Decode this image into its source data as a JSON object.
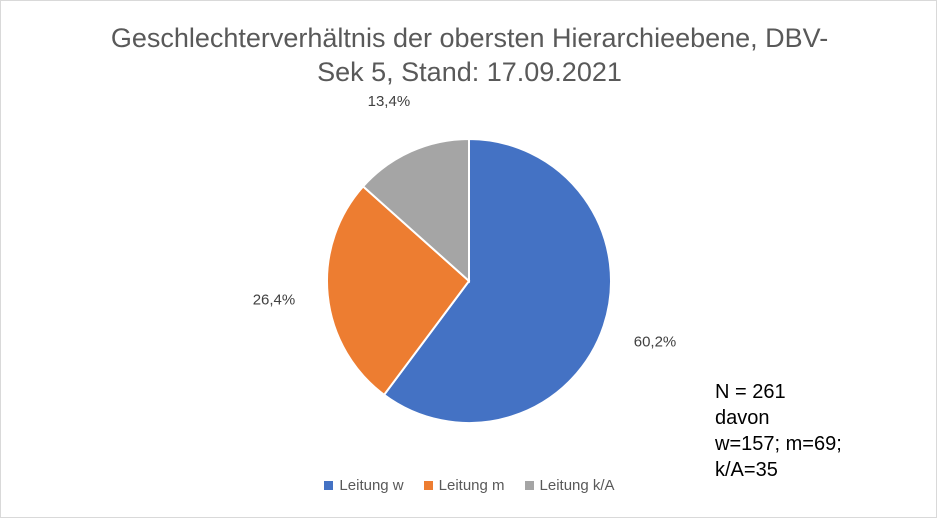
{
  "chart_data": {
    "type": "pie",
    "title": "Geschlechterverhältnis der obersten Hierarchieebene, DBV-\nSek 5, Stand: 17.09.2021",
    "categories": [
      "Leitung w",
      "Leitung m",
      "Leitung k/A"
    ],
    "values": [
      60.2,
      26.4,
      13.4
    ],
    "data_labels": [
      "60,2%",
      "26,4%",
      "13,4%"
    ],
    "colors": [
      "#4472c4",
      "#ed7d31",
      "#a5a5a5"
    ],
    "legend_position": "bottom"
  },
  "note": {
    "lines": [
      "N = 261",
      "davon",
      "w=157; m=69;",
      "k/A=35"
    ]
  }
}
